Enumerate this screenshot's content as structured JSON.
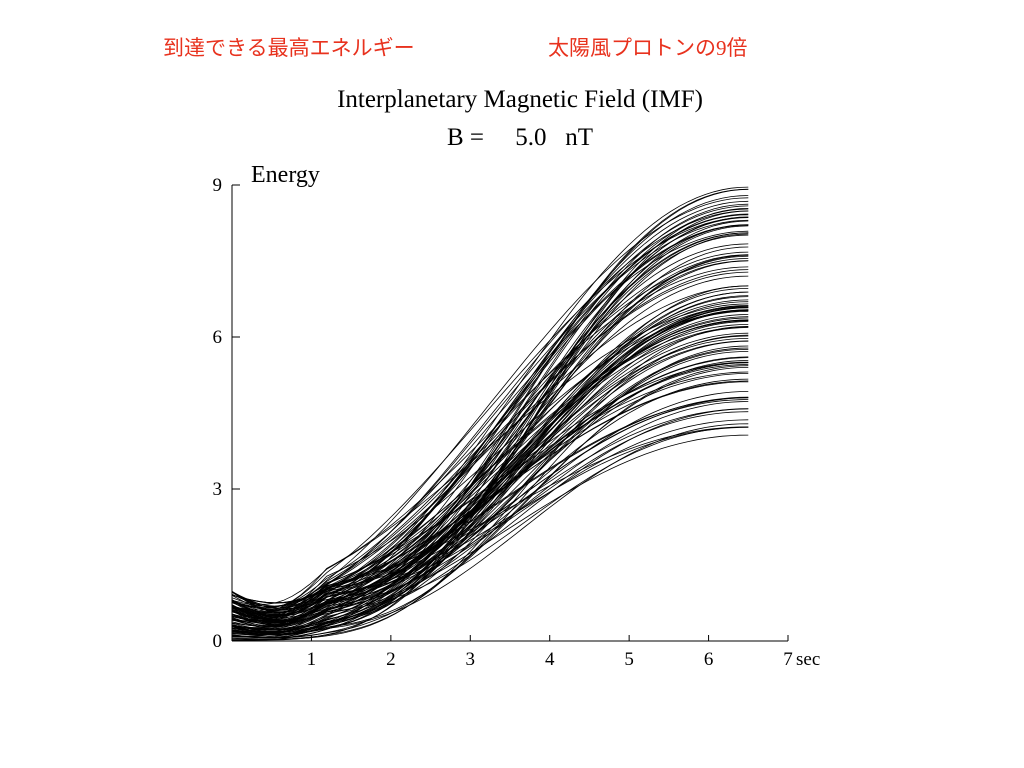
{
  "header": {
    "note_left": "到達できる最高エネルギー",
    "note_right": "太陽風プロトンの9倍"
  },
  "chart_data": {
    "type": "line",
    "title": "Interplanetary Magnetic Field (IMF)",
    "subtitle": "B =     5.0   nT",
    "ylabel": "Energy",
    "xlabel": "",
    "x_unit": "sec",
    "xlim": [
      0,
      7
    ],
    "ylim": [
      0,
      9
    ],
    "x_ticks": [
      1,
      2,
      3,
      4,
      5,
      6,
      7
    ],
    "y_ticks": [
      0,
      3,
      6,
      9
    ],
    "grid": false,
    "legend": "none",
    "curve_family": {
      "count": 112,
      "x_range": [
        0,
        6.5
      ],
      "start_energy_range": [
        0,
        1
      ],
      "final_energy_range": [
        4.0,
        9.0
      ],
      "shape": "sigmoidal rise; energy curves bounded between an initial 0-1 band and a final 4-9 band at t = 6.5 s"
    },
    "line_color": "#000000"
  }
}
